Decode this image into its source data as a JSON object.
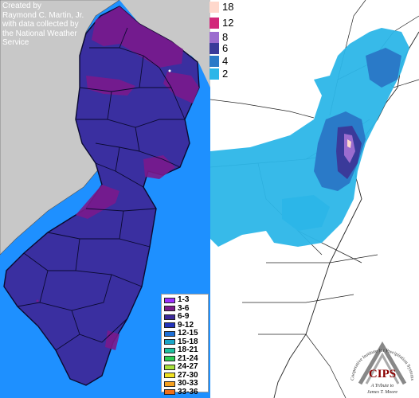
{
  "credit": {
    "line1": "Created by",
    "line2": "Raymond C. Martin, Jr.",
    "line3": "with data collected by",
    "line4": "the National Weather",
    "line5": "Service"
  },
  "left_legend": [
    {
      "label": "1-3",
      "color": "#9b30ff"
    },
    {
      "label": "3-6",
      "color": "#7a1a8c"
    },
    {
      "label": "6-9",
      "color": "#3b2a9a"
    },
    {
      "label": "9-12",
      "color": "#2233bb"
    },
    {
      "label": "12-15",
      "color": "#1d6fd6"
    },
    {
      "label": "15-18",
      "color": "#1ba6c8"
    },
    {
      "label": "18-21",
      "color": "#1ec1a0"
    },
    {
      "label": "21-24",
      "color": "#2ecc55"
    },
    {
      "label": "24-27",
      "color": "#a8e03a"
    },
    {
      "label": "27-30",
      "color": "#f0e020"
    },
    {
      "label": "30-33",
      "color": "#f5a020"
    },
    {
      "label": "33-36",
      "color": "#f07018"
    }
  ],
  "right_legend": [
    {
      "label": "18",
      "color": "#ffd8cc"
    },
    {
      "label": "12",
      "color": "#d2287a"
    },
    {
      "label": "8",
      "color": "#9b6ccf"
    },
    {
      "label": "6",
      "color": "#3a3a9a"
    },
    {
      "label": "4",
      "color": "#2a7ac8"
    },
    {
      "label": "2",
      "color": "#2cb6e8"
    }
  ],
  "logo": {
    "acronym": "CIPS",
    "arc_text": "Cooperative Institute for Precipitation Systems",
    "tribute": "A Tribute to",
    "tribute_name": "James T. Moore"
  },
  "colors": {
    "ocean": "#1e90ff",
    "land_gray": "#c8c8c8",
    "nj_blue": "#3a2fa0",
    "nj_purple": "#7a1a8c",
    "snow_light": "#2cb6e8",
    "snow_mid": "#2a7ac8",
    "snow_dark": "#3a3a9a"
  }
}
